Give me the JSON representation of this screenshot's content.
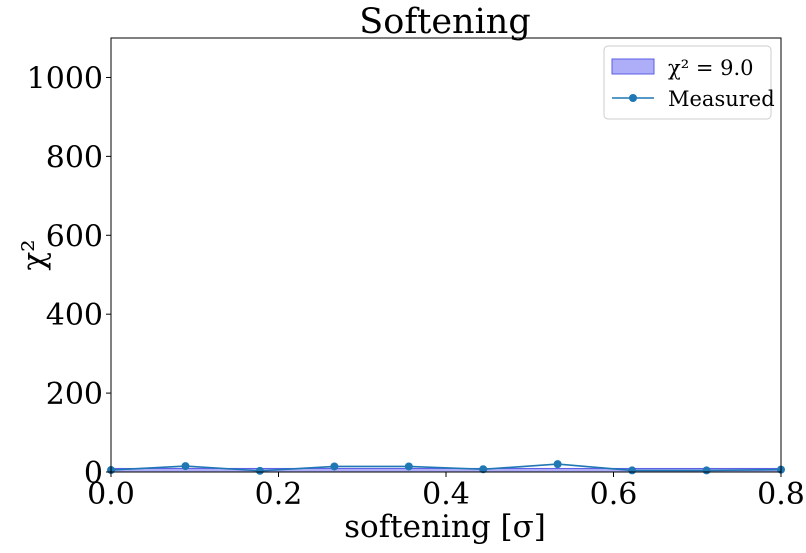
{
  "chart_data": {
    "type": "line",
    "title": "Softening",
    "xlabel": "softening [σ]",
    "ylabel": "χ²",
    "xlim": [
      0.0,
      0.8
    ],
    "ylim": [
      0,
      1100
    ],
    "xticks": [
      0.0,
      0.2,
      0.4,
      0.6,
      0.8
    ],
    "xtick_labels": [
      "0.0",
      "0.2",
      "0.4",
      "0.6",
      "0.8"
    ],
    "yticks": [
      0,
      200,
      400,
      600,
      800,
      1000
    ],
    "ytick_labels": [
      "0",
      "200",
      "400",
      "600",
      "800",
      "1000"
    ],
    "grid": false,
    "legend_position": "top-right",
    "band": {
      "label": "χ² = 9.0",
      "y_from": 0,
      "y_to": 9.0,
      "color": "#aeaef8",
      "edge": "#5c5ce6"
    },
    "series": [
      {
        "name": "Measured",
        "color": "#1f77b4",
        "x": [
          0.0,
          0.0889,
          0.1778,
          0.2667,
          0.3556,
          0.4444,
          0.5333,
          0.6222,
          0.7111,
          0.8
        ],
        "y": [
          5,
          15,
          3,
          14,
          14,
          7,
          20,
          4,
          4,
          6
        ]
      }
    ]
  }
}
